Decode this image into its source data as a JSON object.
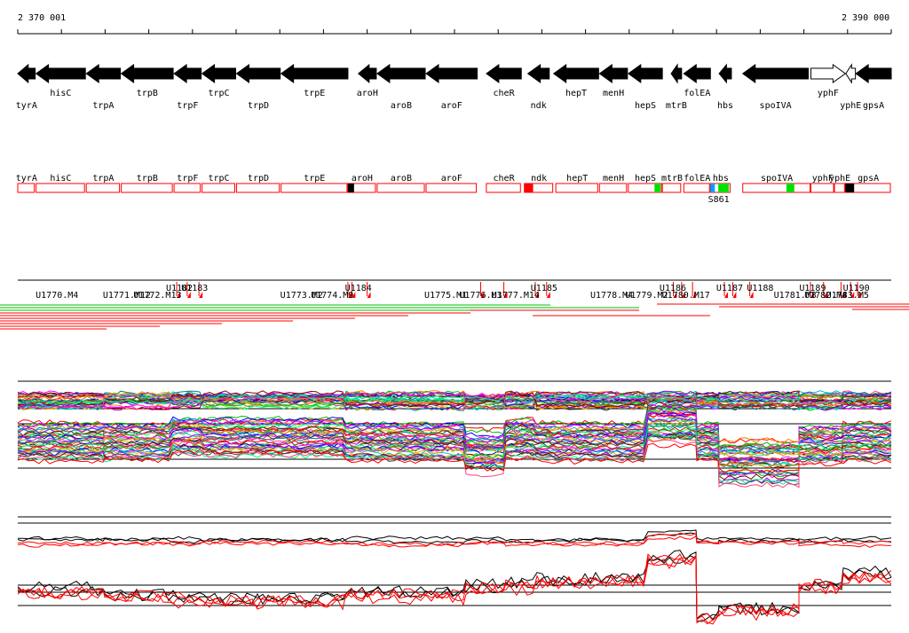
{
  "ruler": {
    "start_label": "2 370 001",
    "end_label": "2 390 000"
  },
  "genes": [
    {
      "name": "tyrA",
      "start": 2370001,
      "end": 2370400,
      "strand": "-",
      "lane": "below"
    },
    {
      "name": "hisC",
      "start": 2370420,
      "end": 2371550,
      "strand": "-",
      "lane": "above"
    },
    {
      "name": "trpA",
      "start": 2371570,
      "end": 2372350,
      "strand": "-",
      "lane": "below"
    },
    {
      "name": "trpB",
      "start": 2372370,
      "end": 2373560,
      "strand": "-",
      "lane": "above"
    },
    {
      "name": "trpF",
      "start": 2373580,
      "end": 2374200,
      "strand": "-",
      "lane": "below"
    },
    {
      "name": "trpC",
      "start": 2374220,
      "end": 2374990,
      "strand": "-",
      "lane": "above"
    },
    {
      "name": "trpD",
      "start": 2375010,
      "end": 2376010,
      "strand": "-",
      "lane": "below"
    },
    {
      "name": "trpE",
      "start": 2376030,
      "end": 2377560,
      "strand": "-",
      "lane": "above"
    },
    {
      "name": "aroH",
      "start": 2377800,
      "end": 2378210,
      "strand": "-",
      "lane": "above"
    },
    {
      "name": "aroB",
      "start": 2378230,
      "end": 2379330,
      "strand": "-",
      "lane": "below"
    },
    {
      "name": "aroF",
      "start": 2379350,
      "end": 2380520,
      "strand": "-",
      "lane": "below"
    },
    {
      "name": "cheR",
      "start": 2380730,
      "end": 2381530,
      "strand": "-",
      "lane": "above"
    },
    {
      "name": "ndk",
      "start": 2381680,
      "end": 2382170,
      "strand": "-",
      "lane": "below"
    },
    {
      "name": "hepT",
      "start": 2382270,
      "end": 2383300,
      "strand": "-",
      "lane": "above"
    },
    {
      "name": "menH",
      "start": 2383320,
      "end": 2383960,
      "strand": "-",
      "lane": "above"
    },
    {
      "name": "hepS",
      "start": 2383980,
      "end": 2384760,
      "strand": "-",
      "lane": "below"
    },
    {
      "name": "mtrB",
      "start": 2384960,
      "end": 2385200,
      "strand": "-",
      "lane": "below"
    },
    {
      "name": "folEA",
      "start": 2385250,
      "end": 2385860,
      "strand": "-",
      "lane": "above"
    },
    {
      "name": "hbs",
      "start": 2386060,
      "end": 2386340,
      "strand": "-",
      "lane": "below"
    },
    {
      "name": "spoIVA",
      "start": 2386600,
      "end": 2388100,
      "strand": "-",
      "lane": "below"
    },
    {
      "name": "yphF",
      "start": 2388160,
      "end": 2388950,
      "strand": "+",
      "lane": "above",
      "hollow": true
    },
    {
      "name": "yphE",
      "start": 2388960,
      "end": 2389180,
      "strand": "-",
      "lane": "below",
      "hollow": true
    },
    {
      "name": "gpsA",
      "start": 2389190,
      "end": 2390000,
      "strand": "-",
      "lane": "below"
    }
  ],
  "gene_boxes": [
    {
      "name": "tyrA",
      "start": 2370001,
      "end": 2370400
    },
    {
      "name": "hisC",
      "start": 2370420,
      "end": 2371550
    },
    {
      "name": "trpA",
      "start": 2371570,
      "end": 2372350
    },
    {
      "name": "trpB",
      "start": 2372370,
      "end": 2373560
    },
    {
      "name": "trpF",
      "start": 2373580,
      "end": 2374200
    },
    {
      "name": "trpC",
      "start": 2374220,
      "end": 2374990
    },
    {
      "name": "trpD",
      "start": 2375010,
      "end": 2376010
    },
    {
      "name": "trpE",
      "start": 2376030,
      "end": 2377560
    },
    {
      "name": "aroH",
      "start": 2377560,
      "end": 2378210
    },
    {
      "name": "aroB",
      "start": 2378230,
      "end": 2379330
    },
    {
      "name": "aroF",
      "start": 2379350,
      "end": 2380520
    },
    {
      "name": "cheR",
      "start": 2380730,
      "end": 2381530
    },
    {
      "name": "ndk",
      "start": 2381600,
      "end": 2382270
    },
    {
      "name": "hepT",
      "start": 2382320,
      "end": 2383300
    },
    {
      "name": "menH",
      "start": 2383320,
      "end": 2383960
    },
    {
      "name": "hepS",
      "start": 2383980,
      "end": 2384760
    },
    {
      "name": "mtrB",
      "start": 2384760,
      "end": 2385200
    },
    {
      "name": "folEA",
      "start": 2385250,
      "end": 2385860
    },
    {
      "name": "hbs",
      "start": 2385860,
      "end": 2386330
    },
    {
      "name": "spoIVA",
      "start": 2386600,
      "end": 2388160
    },
    {
      "name": "yphF",
      "start": 2388160,
      "end": 2388700
    },
    {
      "name": "yphE",
      "start": 2388700,
      "end": 2388950
    },
    {
      "name": "gpsA",
      "start": 2388950,
      "end": 2390000
    }
  ],
  "box_marks": [
    {
      "pos": 2377560,
      "width": 140,
      "color": "#000000"
    },
    {
      "pos": 2381600,
      "width": 200,
      "color": "#ff0000"
    },
    {
      "pos": 2384580,
      "width": 140,
      "color": "#00e000"
    },
    {
      "pos": 2385860,
      "width": 100,
      "color": "#00a0ff"
    },
    {
      "pos": 2386040,
      "width": 240,
      "color": "#00e000"
    },
    {
      "pos": 2387600,
      "width": 180,
      "color": "#00e000"
    },
    {
      "pos": 2388950,
      "width": 200,
      "color": "#000000"
    }
  ],
  "box_note": {
    "label": "S861",
    "pos": 2386050
  },
  "regulatory_labels": [
    {
      "label": "U1770.M4",
      "pos": 2370900
    },
    {
      "label": "U1771.M12",
      "pos": 2372500
    },
    {
      "label": "U1772.M13",
      "pos": 2373200
    },
    {
      "label": "U1182",
      "pos": 2373700
    },
    {
      "label": "U1183",
      "pos": 2374050
    },
    {
      "label": "U1773.M2",
      "pos": 2376500
    },
    {
      "label": "U1774.M9",
      "pos": 2377200
    },
    {
      "label": "U1184",
      "pos": 2377800
    },
    {
      "label": "U1775.M1",
      "pos": 2379800
    },
    {
      "label": "U1776.M3",
      "pos": 2380600
    },
    {
      "label": "U1777.M14",
      "pos": 2381400
    },
    {
      "label": "U1185",
      "pos": 2382050
    },
    {
      "label": "U1778.M4",
      "pos": 2383600
    },
    {
      "label": "U1779.M2",
      "pos": 2384400
    },
    {
      "label": "U1780.M17",
      "pos": 2385300
    },
    {
      "label": "U1186",
      "pos": 2385000
    },
    {
      "label": "U1187",
      "pos": 2386300
    },
    {
      "label": "U1188",
      "pos": 2387000
    },
    {
      "label": "U1781.M3",
      "pos": 2387800
    },
    {
      "label": "U1189",
      "pos": 2388200
    },
    {
      "label": "U1782.M4",
      "pos": 2388500
    },
    {
      "label": "U1783.M5",
      "pos": 2389000
    },
    {
      "label": "U1190",
      "pos": 2389200
    }
  ],
  "regulatory_markers": [
    2373640,
    2373880,
    2374150,
    2377560,
    2377650,
    2378000,
    2380600,
    2381130,
    2381850,
    2382110,
    2385010,
    2385200,
    2385450,
    2386180,
    2386370,
    2386760,
    2388150,
    2388450,
    2388850,
    2389070,
    2389230
  ]
}
